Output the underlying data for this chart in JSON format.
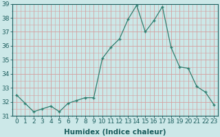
{
  "x": [
    0,
    1,
    2,
    3,
    4,
    5,
    6,
    7,
    8,
    9,
    10,
    11,
    12,
    13,
    14,
    15,
    16,
    17,
    18,
    19,
    20,
    21,
    22,
    23
  ],
  "y": [
    32.5,
    31.9,
    31.3,
    31.5,
    31.7,
    31.3,
    31.9,
    32.1,
    32.3,
    32.3,
    35.1,
    35.9,
    36.5,
    37.9,
    38.9,
    37.0,
    37.8,
    38.8,
    35.9,
    34.5,
    34.4,
    33.1,
    32.7,
    31.8
  ],
  "line_color": "#2e7d6e",
  "marker": "+",
  "marker_size": 3,
  "bg_color": "#cce8e8",
  "grid_color": "#d4a0a0",
  "xlabel": "Humidex (Indice chaleur)",
  "xlim": [
    -0.5,
    23.5
  ],
  "ylim": [
    31,
    39
  ],
  "yticks": [
    31,
    32,
    33,
    34,
    35,
    36,
    37,
    38,
    39
  ],
  "xticks": [
    0,
    1,
    2,
    3,
    4,
    5,
    6,
    7,
    8,
    9,
    10,
    11,
    12,
    13,
    14,
    15,
    16,
    17,
    18,
    19,
    20,
    21,
    22,
    23
  ],
  "xtick_labels": [
    "0",
    "1",
    "2",
    "3",
    "4",
    "5",
    "6",
    "7",
    "8",
    "9",
    "10",
    "11",
    "12",
    "13",
    "14",
    "15",
    "16",
    "17",
    "18",
    "19",
    "20",
    "21",
    "22",
    "23"
  ],
  "font_size": 6.5,
  "xlabel_fontsize": 7.5,
  "label_color": "#1a5c5c",
  "spine_color": "#1a5c5c"
}
